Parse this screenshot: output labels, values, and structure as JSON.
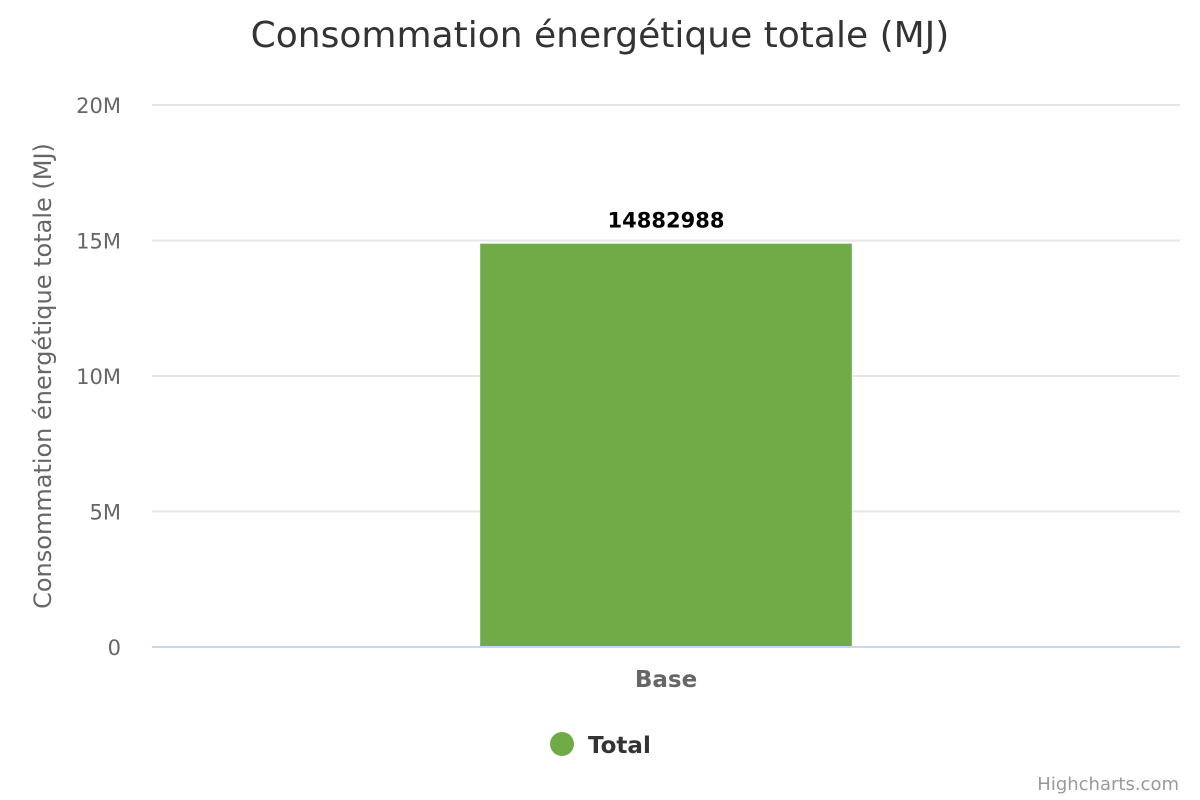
{
  "chart_data": {
    "type": "bar",
    "title": "Consommation énergétique totale (MJ)",
    "ylabel": "Consommation énergétique totale (MJ)",
    "xlabel": "",
    "categories": [
      "Base"
    ],
    "series": [
      {
        "name": "Total",
        "values": [
          14882988
        ],
        "color": "#71ab48"
      }
    ],
    "ylim": [
      0,
      20000000
    ],
    "yticks": [
      {
        "value": 0,
        "label": "0"
      },
      {
        "value": 5000000,
        "label": "5M"
      },
      {
        "value": 10000000,
        "label": "10M"
      },
      {
        "value": 15000000,
        "label": "15M"
      },
      {
        "value": 20000000,
        "label": "20M"
      }
    ],
    "data_labels": [
      "14882988"
    ],
    "grid": true,
    "legend_position": "bottom-center"
  },
  "credits": "Highcharts.com"
}
